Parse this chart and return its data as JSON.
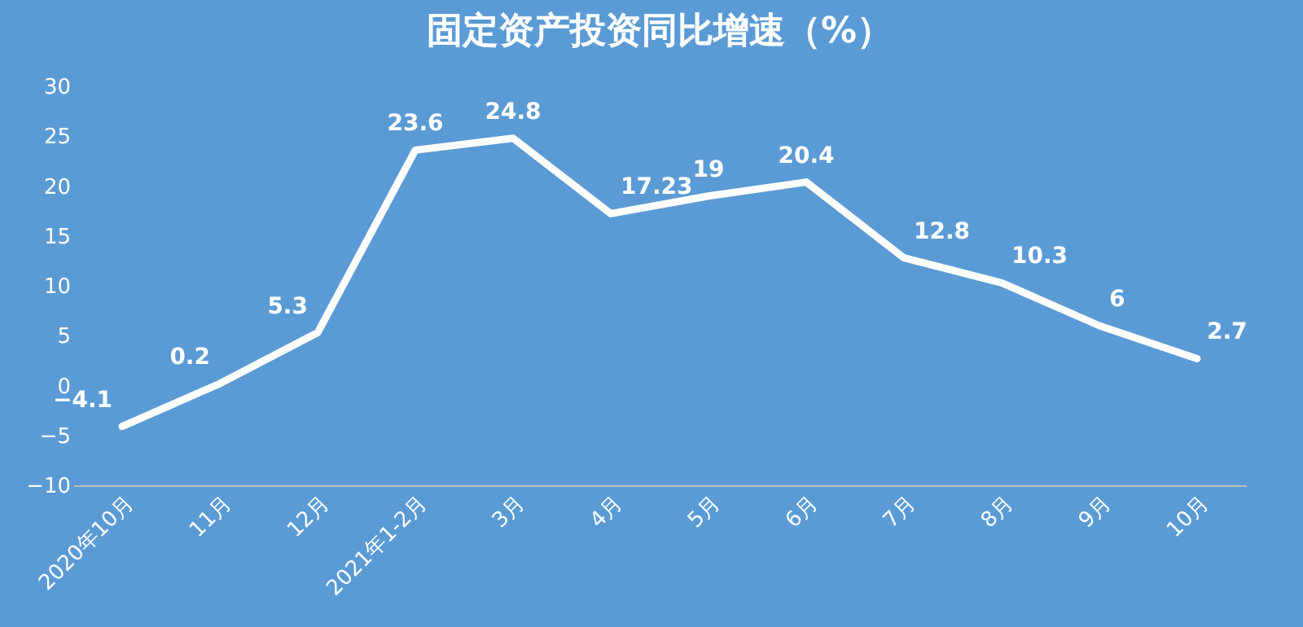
{
  "chart_data": {
    "type": "line",
    "title": "固定资产投资同比增速（%）",
    "categories": [
      "2020年10月",
      "11月",
      "12月",
      "2021年1-2月",
      "3月",
      "4月",
      "5月",
      "6月",
      "7月",
      "8月",
      "9月",
      "10月"
    ],
    "series": [
      {
        "color": "#ffffff",
        "values": [
          -4.1,
          0.2,
          5.3,
          23.6,
          24.8,
          17.23,
          19,
          20.4,
          12.8,
          10.3,
          6,
          2.7
        ]
      }
    ],
    "ylim": [
      -10,
      30
    ],
    "yticks": [
      -10,
      -5,
      0,
      5,
      10,
      15,
      20,
      25,
      30
    ],
    "grid": false,
    "legend": false,
    "marker": "none",
    "line_style": "solid",
    "data_labels": true
  }
}
